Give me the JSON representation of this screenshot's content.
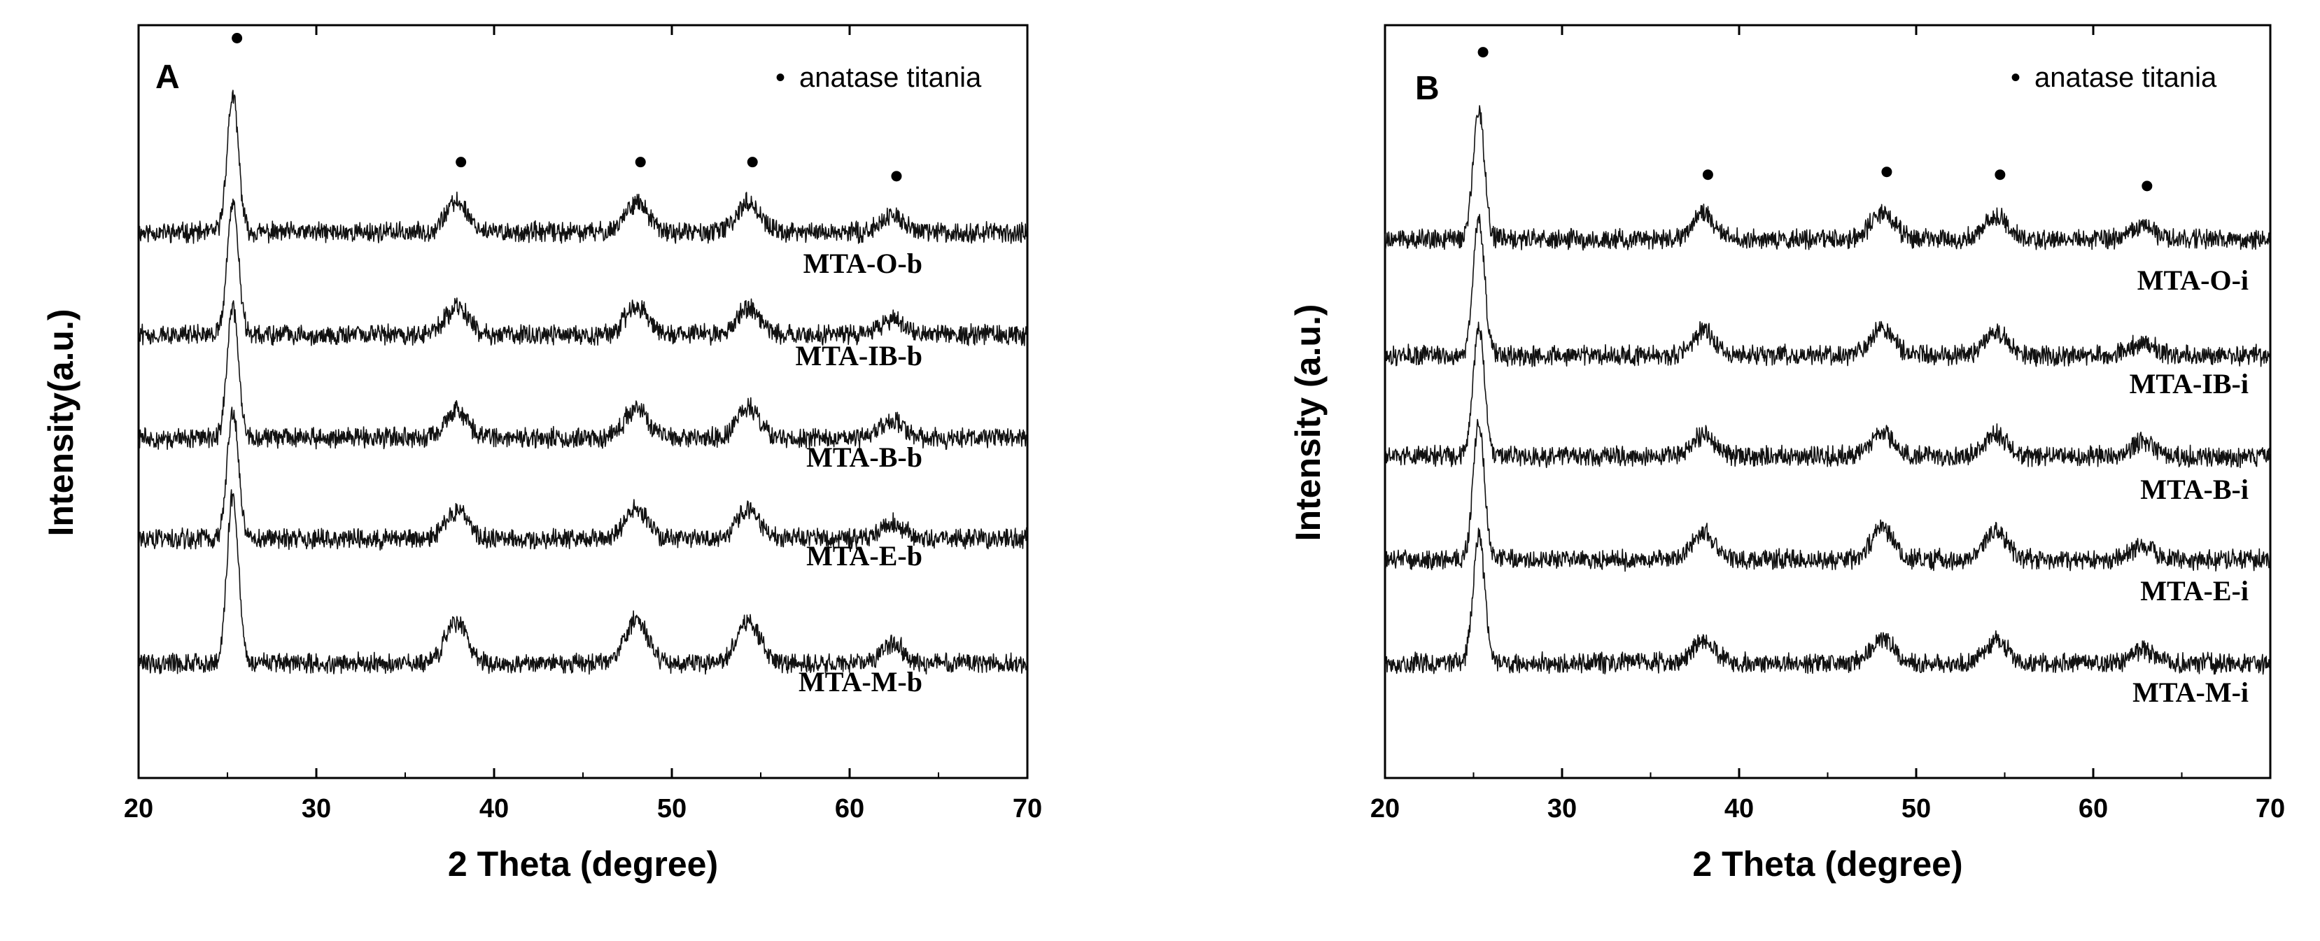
{
  "figure": {
    "colors": {
      "line": "#111111",
      "axis": "#000000",
      "background": "#ffffff"
    }
  },
  "chart_data": [
    {
      "type": "line",
      "panel_label": "A",
      "title": "",
      "xlabel": "2 Theta (degree)",
      "ylabel": "Intensity(a.u.)",
      "xlim": [
        20,
        70
      ],
      "xticks": [
        20,
        30,
        40,
        50,
        60,
        70
      ],
      "yticks_shown": false,
      "legend": {
        "marker": "•",
        "label": "anatase titania",
        "placement": "top-right"
      },
      "peaks_marked": [
        25.3,
        37.9,
        48.0,
        54.3,
        62.4
      ],
      "y_unit": "offset stack, relative intensity",
      "series": [
        {
          "name": "MTA-O-b",
          "offset": 4,
          "peaks": [
            {
              "x": 25.3,
              "h": 1.0
            },
            {
              "x": 37.9,
              "h": 0.22
            },
            {
              "x": 48.0,
              "h": 0.22
            },
            {
              "x": 54.3,
              "h": 0.22
            },
            {
              "x": 62.4,
              "h": 0.12
            }
          ]
        },
        {
          "name": "MTA-IB-b",
          "offset": 3,
          "peaks": [
            {
              "x": 25.3,
              "h": 0.95
            },
            {
              "x": 37.9,
              "h": 0.2
            },
            {
              "x": 48.0,
              "h": 0.2
            },
            {
              "x": 54.3,
              "h": 0.2
            },
            {
              "x": 62.4,
              "h": 0.12
            }
          ]
        },
        {
          "name": "MTA-B-b",
          "offset": 2,
          "peaks": [
            {
              "x": 25.3,
              "h": 0.95
            },
            {
              "x": 37.9,
              "h": 0.2
            },
            {
              "x": 48.0,
              "h": 0.22
            },
            {
              "x": 54.3,
              "h": 0.22
            },
            {
              "x": 62.4,
              "h": 0.12
            }
          ]
        },
        {
          "name": "MTA-E-b",
          "offset": 1,
          "peaks": [
            {
              "x": 25.3,
              "h": 0.95
            },
            {
              "x": 37.9,
              "h": 0.2
            },
            {
              "x": 48.0,
              "h": 0.22
            },
            {
              "x": 54.3,
              "h": 0.22
            },
            {
              "x": 62.4,
              "h": 0.12
            }
          ]
        },
        {
          "name": "MTA-M-b",
          "offset": 0,
          "peaks": [
            {
              "x": 25.3,
              "h": 1.25
            },
            {
              "x": 37.9,
              "h": 0.3
            },
            {
              "x": 48.0,
              "h": 0.32
            },
            {
              "x": 54.3,
              "h": 0.3
            },
            {
              "x": 62.4,
              "h": 0.15
            }
          ]
        }
      ]
    },
    {
      "type": "line",
      "panel_label": "B",
      "title": "",
      "xlabel": "2 Theta (degree)",
      "ylabel": "Intensity (a.u.)",
      "xlim": [
        20,
        70
      ],
      "xticks": [
        20,
        30,
        40,
        50,
        60,
        70
      ],
      "yticks_shown": false,
      "legend": {
        "marker": "•",
        "label": "anatase titania",
        "placement": "top-right"
      },
      "peaks_marked": [
        25.3,
        38.0,
        48.1,
        54.5,
        62.8
      ],
      "y_unit": "offset stack, relative intensity",
      "series": [
        {
          "name": "MTA-O-i",
          "offset": 4,
          "peaks": [
            {
              "x": 25.3,
              "h": 0.95
            },
            {
              "x": 38.0,
              "h": 0.18
            },
            {
              "x": 48.1,
              "h": 0.2
            },
            {
              "x": 54.5,
              "h": 0.18
            },
            {
              "x": 62.8,
              "h": 0.1
            }
          ]
        },
        {
          "name": "MTA-IB-i",
          "offset": 3,
          "peaks": [
            {
              "x": 25.3,
              "h": 1.0
            },
            {
              "x": 38.0,
              "h": 0.18
            },
            {
              "x": 48.1,
              "h": 0.2
            },
            {
              "x": 54.5,
              "h": 0.18
            },
            {
              "x": 62.8,
              "h": 0.1
            }
          ]
        },
        {
          "name": "MTA-B-i",
          "offset": 2,
          "peaks": [
            {
              "x": 25.3,
              "h": 0.95
            },
            {
              "x": 38.0,
              "h": 0.16
            },
            {
              "x": 48.1,
              "h": 0.18
            },
            {
              "x": 54.5,
              "h": 0.16
            },
            {
              "x": 62.8,
              "h": 0.1
            }
          ]
        },
        {
          "name": "MTA-E-i",
          "offset": 1,
          "peaks": [
            {
              "x": 25.3,
              "h": 1.0
            },
            {
              "x": 38.0,
              "h": 0.2
            },
            {
              "x": 48.1,
              "h": 0.22
            },
            {
              "x": 54.5,
              "h": 0.2
            },
            {
              "x": 62.8,
              "h": 0.1
            }
          ]
        },
        {
          "name": "MTA-M-i",
          "offset": 0,
          "peaks": [
            {
              "x": 25.3,
              "h": 0.95
            },
            {
              "x": 38.0,
              "h": 0.16
            },
            {
              "x": 48.1,
              "h": 0.18
            },
            {
              "x": 54.5,
              "h": 0.16
            },
            {
              "x": 62.8,
              "h": 0.1
            }
          ]
        }
      ]
    }
  ]
}
